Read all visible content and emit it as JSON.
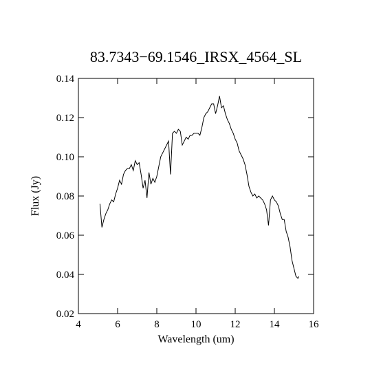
{
  "chart_data": {
    "type": "line",
    "title": "83.7343−69.1546_IRSX_4564_SL",
    "xlabel": "Wavelength (um)",
    "ylabel": "Flux (Jy)",
    "color": "#000000",
    "x": [
      5.1,
      5.2,
      5.3,
      5.4,
      5.5,
      5.6,
      5.7,
      5.8,
      5.9,
      6.0,
      6.1,
      6.2,
      6.3,
      6.4,
      6.5,
      6.6,
      6.7,
      6.8,
      6.9,
      7.0,
      7.1,
      7.2,
      7.3,
      7.4,
      7.5,
      7.6,
      7.7,
      7.8,
      7.9,
      8.0,
      8.1,
      8.2,
      8.3,
      8.4,
      8.5,
      8.6,
      8.7,
      8.8,
      8.9,
      9.0,
      9.1,
      9.2,
      9.3,
      9.4,
      9.5,
      9.6,
      9.7,
      9.8,
      9.9,
      10.0,
      10.1,
      10.2,
      10.3,
      10.4,
      10.5,
      10.6,
      10.7,
      10.8,
      10.9,
      11.0,
      11.1,
      11.2,
      11.3,
      11.4,
      11.5,
      11.6,
      11.7,
      11.8,
      11.9,
      12.0,
      12.1,
      12.2,
      12.3,
      12.4,
      12.5,
      12.6,
      12.7,
      12.8,
      12.9,
      13.0,
      13.1,
      13.2,
      13.3,
      13.4,
      13.5,
      13.6,
      13.7,
      13.8,
      13.9,
      14.0,
      14.1,
      14.2,
      14.3,
      14.4,
      14.5,
      14.6,
      14.7,
      14.8,
      14.9,
      15.0,
      15.1,
      15.2,
      15.25
    ],
    "values": [
      0.076,
      0.064,
      0.068,
      0.071,
      0.073,
      0.076,
      0.078,
      0.077,
      0.081,
      0.084,
      0.088,
      0.086,
      0.091,
      0.093,
      0.094,
      0.094,
      0.096,
      0.093,
      0.098,
      0.096,
      0.097,
      0.091,
      0.084,
      0.088,
      0.079,
      0.092,
      0.086,
      0.089,
      0.087,
      0.09,
      0.095,
      0.1,
      0.102,
      0.104,
      0.106,
      0.108,
      0.091,
      0.112,
      0.113,
      0.112,
      0.114,
      0.113,
      0.106,
      0.108,
      0.11,
      0.109,
      0.111,
      0.111,
      0.112,
      0.112,
      0.112,
      0.111,
      0.115,
      0.12,
      0.122,
      0.123,
      0.125,
      0.127,
      0.127,
      0.122,
      0.126,
      0.131,
      0.125,
      0.126,
      0.122,
      0.119,
      0.117,
      0.114,
      0.112,
      0.109,
      0.107,
      0.103,
      0.101,
      0.099,
      0.096,
      0.091,
      0.085,
      0.082,
      0.08,
      0.081,
      0.079,
      0.08,
      0.079,
      0.078,
      0.076,
      0.073,
      0.065,
      0.078,
      0.08,
      0.078,
      0.077,
      0.075,
      0.071,
      0.068,
      0.068,
      0.062,
      0.059,
      0.054,
      0.047,
      0.043,
      0.039,
      0.038,
      0.039
    ],
    "xlim": [
      4,
      16
    ],
    "xticks": [
      4,
      6,
      8,
      10,
      12,
      14,
      16
    ],
    "ylim": [
      0.02,
      0.14
    ],
    "yticks": [
      0.02,
      0.04,
      0.06,
      0.08,
      {
        "value": 0.1,
        "label": "0.10"
      },
      0.12,
      0.14
    ]
  }
}
